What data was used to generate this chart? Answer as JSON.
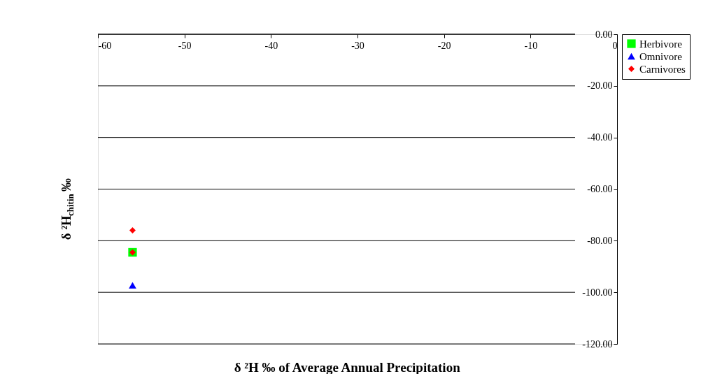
{
  "chart_data": {
    "type": "scatter",
    "xlabel": "δ ²H ‰ of Average Annual Precipitation",
    "ylabel": "δ ²H$_{chitin}$ ‰",
    "xlim": [
      -60,
      0
    ],
    "xticks": [
      -60,
      -50,
      -40,
      -30,
      -20,
      -10,
      0
    ],
    "ylim": [
      -120,
      0
    ],
    "yticks": [
      {
        "value": -120,
        "label": "-120.00"
      },
      {
        "value": -100,
        "label": "-100.00"
      },
      {
        "value": -80,
        "label": "-80.00"
      },
      {
        "value": -60,
        "label": "-60.00"
      },
      {
        "value": -40,
        "label": "-40.00"
      },
      {
        "value": -20,
        "label": "-20.00"
      },
      {
        "value": 0,
        "label": "0.00"
      }
    ],
    "grid": "y",
    "legend": "right",
    "x": [
      -56,
      -56
    ],
    "series": [
      {
        "name": "Herbivore",
        "color": "#00ff00",
        "marker": "square",
        "values": [
          -84.5,
          null
        ]
      },
      {
        "name": "Omnivore",
        "color": "#0000ff",
        "marker": "triangle",
        "values": [
          -97.3,
          null
        ]
      },
      {
        "name": "Carnivores",
        "color": "#ff0000",
        "marker": "diamond",
        "values": [
          -76,
          -84.5
        ]
      }
    ]
  }
}
